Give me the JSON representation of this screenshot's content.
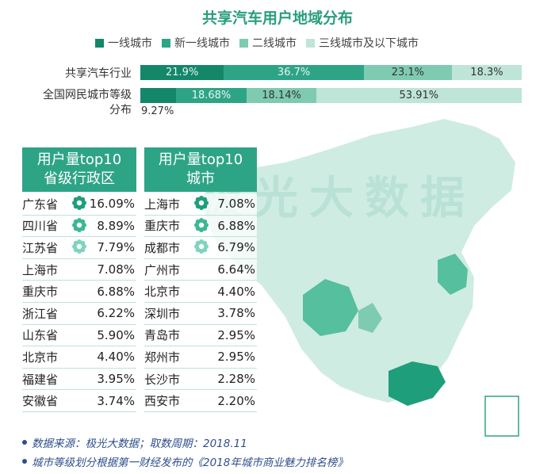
{
  "title": "共享汽车用户地域分布",
  "watermark": "极光大数据",
  "colors": {
    "tier1": "#14876a",
    "new_tier1": "#2ea486",
    "tier2": "#7fcbb2",
    "tier3": "#bfe4d8",
    "header_bg": "#2ea486",
    "map": "#a8dccb",
    "map_highlight": "#3ab894"
  },
  "chart_data": {
    "type": "bar",
    "orientation": "horizontal",
    "stacked": true,
    "title": "共享汽车用户地域分布",
    "categories": [
      "共享汽车行业",
      "全国网民城市等级分布"
    ],
    "category_display": [
      "共享汽车行业",
      "全国网民城市等级",
      "分布"
    ],
    "series": [
      {
        "name": "一线城市",
        "values": [
          21.9,
          9.27
        ],
        "labels": [
          "21.9%",
          "9.27%"
        ]
      },
      {
        "name": "新一线城市",
        "values": [
          36.7,
          18.68
        ],
        "labels": [
          "36.7%",
          "18.68%"
        ]
      },
      {
        "name": "二线城市",
        "values": [
          23.1,
          18.14
        ],
        "labels": [
          "23.1%",
          "18.14%"
        ]
      },
      {
        "name": "三线城市及以下城市",
        "values": [
          18.3,
          53.91
        ],
        "labels": [
          "18.3%",
          "53.91%"
        ]
      }
    ],
    "xlim": [
      0,
      100
    ],
    "legend": "top"
  },
  "province_table": {
    "header_line1": "用户量top10",
    "header_line2": "省级行政区",
    "rows": [
      {
        "name": "广东省",
        "value": "16.09%",
        "medal": "gold"
      },
      {
        "name": "四川省",
        "value": "8.89%",
        "medal": "silver"
      },
      {
        "name": "江苏省",
        "value": "7.79%",
        "medal": "bronze"
      },
      {
        "name": "上海市",
        "value": "7.08%",
        "medal": ""
      },
      {
        "name": "重庆市",
        "value": "6.88%",
        "medal": ""
      },
      {
        "name": "浙江省",
        "value": "6.22%",
        "medal": ""
      },
      {
        "name": "山东省",
        "value": "5.90%",
        "medal": ""
      },
      {
        "name": "北京市",
        "value": "4.40%",
        "medal": ""
      },
      {
        "name": "福建省",
        "value": "3.95%",
        "medal": ""
      },
      {
        "name": "安徽省",
        "value": "3.74%",
        "medal": ""
      }
    ]
  },
  "city_table": {
    "header_line1": "用户量top10",
    "header_line2": "城市",
    "rows": [
      {
        "name": "上海市",
        "value": "7.08%",
        "medal": "gold"
      },
      {
        "name": "重庆市",
        "value": "6.88%",
        "medal": "silver"
      },
      {
        "name": "成都市",
        "value": "6.79%",
        "medal": "bronze"
      },
      {
        "name": "广州市",
        "value": "6.64%",
        "medal": ""
      },
      {
        "name": "北京市",
        "value": "4.40%",
        "medal": ""
      },
      {
        "name": "深圳市",
        "value": "3.78%",
        "medal": ""
      },
      {
        "name": "青岛市",
        "value": "2.95%",
        "medal": ""
      },
      {
        "name": "郑州市",
        "value": "2.95%",
        "medal": ""
      },
      {
        "name": "长沙市",
        "value": "2.28%",
        "medal": ""
      },
      {
        "name": "西安市",
        "value": "2.20%",
        "medal": ""
      }
    ]
  },
  "notes": [
    "数据来源：极光大数据；取数周期：2018.11",
    "城市等级划分根据第一财经发布的《2018年城市商业魅力排名榜》"
  ]
}
